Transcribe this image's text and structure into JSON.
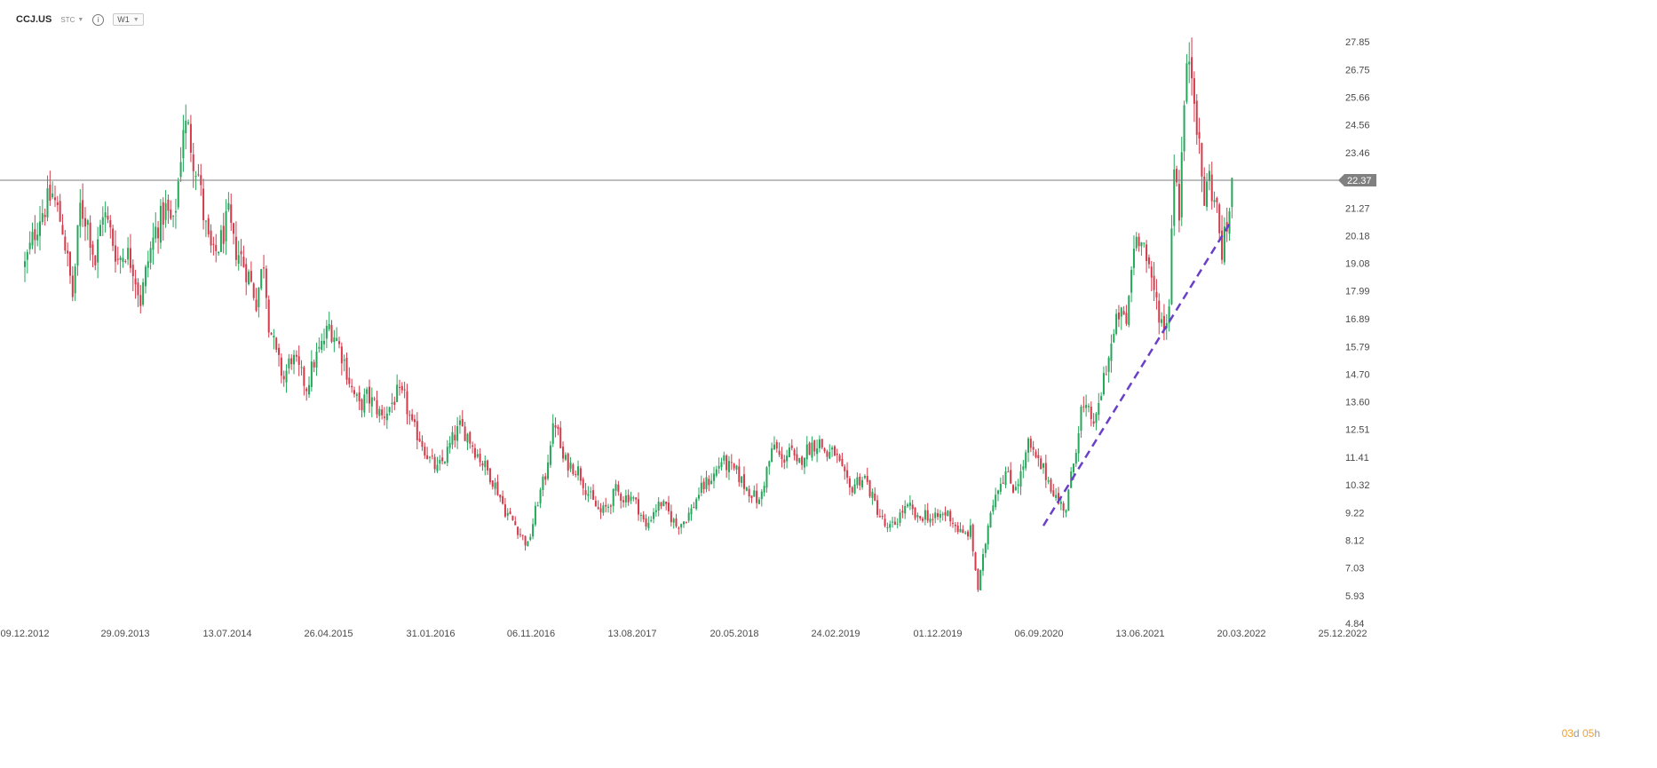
{
  "header": {
    "symbol": "CCJ.US",
    "exchange": "STC",
    "timeframe": "W1",
    "info_icon": "info-icon",
    "dropdown_icon": "caret-down-icon"
  },
  "countdown": {
    "days": "03",
    "days_unit": "d",
    "hours": "05",
    "hours_unit": "h"
  },
  "colors": {
    "up": "#26a65b",
    "down": "#d43a4a",
    "trendline": "#6a3fc8",
    "price_line": "#7d7d7d",
    "price_tag_bg": "#808080",
    "countdown": "#f0a030"
  },
  "chart_data": {
    "type": "candlestick",
    "interval": "weekly",
    "y_axis": {
      "ticks": [
        4.84,
        5.93,
        7.03,
        8.12,
        9.22,
        10.32,
        11.41,
        12.51,
        13.6,
        14.7,
        15.79,
        16.89,
        17.99,
        19.08,
        20.18,
        21.27,
        22.37,
        23.46,
        24.56,
        25.66,
        26.75,
        27.85
      ],
      "range": [
        4.84,
        28.5
      ],
      "position": "right"
    },
    "x_axis": {
      "ticks": [
        "09.12.2012",
        "29.09.2013",
        "13.07.2014",
        "26.04.2015",
        "31.01.2016",
        "06.11.2016",
        "13.08.2017",
        "20.05.2018",
        "24.02.2019",
        "01.12.2019",
        "06.09.2020",
        "13.06.2021",
        "20.03.2022",
        "25.12.2022"
      ]
    },
    "current_price": 22.37,
    "trendline": {
      "start": [
        "2020-09-13",
        8.7
      ],
      "end": [
        "2022-02-20",
        20.8
      ],
      "style": "dashed"
    },
    "price_path": [
      [
        "2012-12-09",
        19.0
      ],
      [
        "2013-01-20",
        21.0
      ],
      [
        "2013-02-24",
        21.8
      ],
      [
        "2013-03-24",
        20.5
      ],
      [
        "2013-04-21",
        17.8
      ],
      [
        "2013-05-12",
        21.3
      ],
      [
        "2013-06-02",
        20.7
      ],
      [
        "2013-06-23",
        19.1
      ],
      [
        "2013-07-14",
        21.2
      ],
      [
        "2013-08-04",
        20.3
      ],
      [
        "2013-08-25",
        19.2
      ],
      [
        "2013-09-15",
        19.6
      ],
      [
        "2013-10-06",
        19.0
      ],
      [
        "2013-10-27",
        17.6
      ],
      [
        "2013-11-17",
        19.2
      ],
      [
        "2013-12-08",
        20.4
      ],
      [
        "2014-01-05",
        21.2
      ],
      [
        "2014-01-26",
        20.5
      ],
      [
        "2014-02-09",
        22.3
      ],
      [
        "2014-02-23",
        24.6
      ],
      [
        "2014-03-09",
        24.3
      ],
      [
        "2014-03-23",
        23.3
      ],
      [
        "2014-04-06",
        22.6
      ],
      [
        "2014-04-20",
        21.0
      ],
      [
        "2014-05-04",
        19.9
      ],
      [
        "2014-05-18",
        19.3
      ],
      [
        "2014-06-08",
        20.0
      ],
      [
        "2014-06-29",
        20.9
      ],
      [
        "2014-07-13",
        19.8
      ],
      [
        "2014-08-03",
        19.3
      ],
      [
        "2014-08-24",
        18.6
      ],
      [
        "2014-09-14",
        17.6
      ],
      [
        "2014-10-05",
        19.2
      ],
      [
        "2014-10-19",
        16.8
      ],
      [
        "2014-11-09",
        15.4
      ],
      [
        "2014-11-30",
        14.5
      ],
      [
        "2014-12-21",
        15.4
      ],
      [
        "2015-01-11",
        14.8
      ],
      [
        "2015-02-01",
        14.2
      ],
      [
        "2015-02-22",
        15.2
      ],
      [
        "2015-03-15",
        15.8
      ],
      [
        "2015-04-05",
        16.6
      ],
      [
        "2015-04-26",
        16.1
      ],
      [
        "2015-05-17",
        15.2
      ],
      [
        "2015-06-07",
        14.1
      ],
      [
        "2015-06-28",
        13.4
      ],
      [
        "2015-07-19",
        13.8
      ],
      [
        "2015-08-09",
        13.5
      ],
      [
        "2015-08-30",
        13.0
      ],
      [
        "2015-09-20",
        13.4
      ],
      [
        "2015-10-11",
        13.9
      ],
      [
        "2015-11-01",
        13.7
      ],
      [
        "2015-11-22",
        12.6
      ],
      [
        "2015-12-13",
        12.2
      ],
      [
        "2016-01-10",
        11.3
      ],
      [
        "2016-01-31",
        10.9
      ],
      [
        "2016-02-21",
        11.4
      ],
      [
        "2016-03-13",
        12.1
      ],
      [
        "2016-04-03",
        12.6
      ],
      [
        "2016-04-24",
        12.3
      ],
      [
        "2016-05-15",
        11.7
      ],
      [
        "2016-06-05",
        11.2
      ],
      [
        "2016-06-26",
        10.7
      ],
      [
        "2016-07-17",
        10.1
      ],
      [
        "2016-08-07",
        9.3
      ],
      [
        "2016-08-28",
        8.9
      ],
      [
        "2016-09-18",
        8.4
      ],
      [
        "2016-10-09",
        7.9
      ],
      [
        "2016-10-23",
        8.8
      ],
      [
        "2016-11-06",
        9.7
      ],
      [
        "2016-11-27",
        10.7
      ],
      [
        "2016-12-11",
        12.1
      ],
      [
        "2016-12-25",
        12.8
      ],
      [
        "2017-01-15",
        11.3
      ],
      [
        "2017-02-05",
        11.1
      ],
      [
        "2017-02-26",
        10.9
      ],
      [
        "2017-03-19",
        10.2
      ],
      [
        "2017-04-09",
        9.6
      ],
      [
        "2017-04-30",
        9.2
      ],
      [
        "2017-05-21",
        9.5
      ],
      [
        "2017-06-11",
        10.1
      ],
      [
        "2017-07-02",
        9.8
      ],
      [
        "2017-07-23",
        9.9
      ],
      [
        "2017-08-13",
        9.4
      ],
      [
        "2017-09-03",
        8.6
      ],
      [
        "2017-09-24",
        9.3
      ],
      [
        "2017-10-15",
        9.6
      ],
      [
        "2017-11-05",
        9.2
      ],
      [
        "2017-11-26",
        8.7
      ],
      [
        "2017-12-17",
        8.9
      ],
      [
        "2018-01-07",
        9.3
      ],
      [
        "2018-01-28",
        10.0
      ],
      [
        "2018-02-18",
        10.4
      ],
      [
        "2018-03-11",
        10.7
      ],
      [
        "2018-04-01",
        11.3
      ],
      [
        "2018-04-22",
        11.0
      ],
      [
        "2018-05-13",
        10.8
      ],
      [
        "2018-06-03",
        10.3
      ],
      [
        "2018-06-24",
        10.0
      ],
      [
        "2018-07-15",
        9.6
      ],
      [
        "2018-08-05",
        10.9
      ],
      [
        "2018-08-26",
        11.9
      ],
      [
        "2018-09-16",
        11.2
      ],
      [
        "2018-10-07",
        11.8
      ],
      [
        "2018-10-28",
        11.0
      ],
      [
        "2018-11-18",
        11.6
      ],
      [
        "2018-12-09",
        11.9
      ],
      [
        "2018-12-30",
        12.0
      ],
      [
        "2019-01-20",
        11.5
      ],
      [
        "2019-02-10",
        11.6
      ],
      [
        "2019-03-03",
        10.8
      ],
      [
        "2019-03-24",
        10.1
      ],
      [
        "2019-04-14",
        10.5
      ],
      [
        "2019-05-05",
        10.6
      ],
      [
        "2019-05-26",
        9.8
      ],
      [
        "2019-06-16",
        9.1
      ],
      [
        "2019-07-07",
        8.5
      ],
      [
        "2019-07-28",
        8.8
      ],
      [
        "2019-08-18",
        9.3
      ],
      [
        "2019-09-08",
        9.4
      ],
      [
        "2019-09-29",
        8.9
      ],
      [
        "2019-10-20",
        9.2
      ],
      [
        "2019-11-10",
        8.9
      ],
      [
        "2019-12-01",
        9.1
      ],
      [
        "2019-12-22",
        9.2
      ],
      [
        "2020-01-12",
        8.7
      ],
      [
        "2020-02-02",
        8.3
      ],
      [
        "2020-02-23",
        8.5
      ],
      [
        "2020-03-15",
        6.2
      ],
      [
        "2020-03-29",
        7.4
      ],
      [
        "2020-04-19",
        9.4
      ],
      [
        "2020-05-10",
        10.3
      ],
      [
        "2020-05-31",
        10.8
      ],
      [
        "2020-06-21",
        10.2
      ],
      [
        "2020-07-12",
        10.7
      ],
      [
        "2020-08-02",
        11.9
      ],
      [
        "2020-08-23",
        11.3
      ],
      [
        "2020-09-13",
        10.9
      ],
      [
        "2020-10-04",
        10.3
      ],
      [
        "2020-10-25",
        9.6
      ],
      [
        "2020-11-15",
        9.4
      ],
      [
        "2020-12-06",
        11.2
      ],
      [
        "2020-12-27",
        13.3
      ],
      [
        "2021-01-17",
        13.1
      ],
      [
        "2021-02-07",
        12.8
      ],
      [
        "2021-02-28",
        14.6
      ],
      [
        "2021-03-21",
        15.8
      ],
      [
        "2021-04-11",
        17.1
      ],
      [
        "2021-05-02",
        16.7
      ],
      [
        "2021-05-23",
        19.9
      ],
      [
        "2021-06-13",
        20.4
      ],
      [
        "2021-07-04",
        18.6
      ],
      [
        "2021-07-25",
        17.6
      ],
      [
        "2021-08-15",
        16.4
      ],
      [
        "2021-08-29",
        17.6
      ],
      [
        "2021-09-12",
        23.3
      ],
      [
        "2021-09-26",
        21.2
      ],
      [
        "2021-10-10",
        25.4
      ],
      [
        "2021-10-24",
        27.4
      ],
      [
        "2021-11-07",
        26.1
      ],
      [
        "2021-11-21",
        23.4
      ],
      [
        "2021-12-05",
        21.6
      ],
      [
        "2021-12-19",
        22.5
      ],
      [
        "2022-01-09",
        21.1
      ],
      [
        "2022-01-23",
        19.6
      ],
      [
        "2022-02-06",
        20.4
      ],
      [
        "2022-02-20",
        22.37
      ]
    ]
  }
}
